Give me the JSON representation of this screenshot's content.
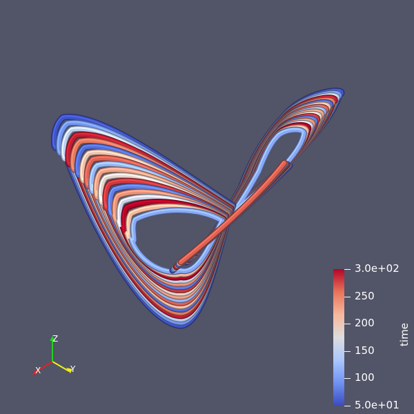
{
  "view": {
    "background": "#525467"
  },
  "color_legend": {
    "title": "time",
    "range": [
      50,
      300
    ],
    "ticks": [
      {
        "value": 300,
        "label": "3.0e+02"
      },
      {
        "value": 250,
        "label": "250"
      },
      {
        "value": 200,
        "label": "200"
      },
      {
        "value": 150,
        "label": "150"
      },
      {
        "value": 100,
        "label": "100"
      },
      {
        "value": 50,
        "label": "5.0e+01"
      }
    ],
    "colormap": [
      "#3b4cc0",
      "#6f92f3",
      "#aac7fd",
      "#dddddd",
      "#f7b89c",
      "#e7745b",
      "#b40426"
    ]
  },
  "orientation_axes": {
    "x": {
      "label": "X",
      "color": "#e22420"
    },
    "y": {
      "label": "Y",
      "color": "#f2f214"
    },
    "z": {
      "label": "Z",
      "color": "#22d122"
    }
  },
  "trajectory": {
    "loops": [
      {
        "time": 55
      },
      {
        "time": 95
      },
      {
        "time": 150
      },
      {
        "time": 290
      },
      {
        "time": 255
      },
      {
        "time": 70
      },
      {
        "time": 205
      },
      {
        "time": 265
      },
      {
        "time": 120
      },
      {
        "time": 230
      },
      {
        "time": 185
      },
      {
        "time": 280
      },
      {
        "time": 80
      },
      {
        "time": 240
      },
      {
        "time": 160
      },
      {
        "time": 300
      },
      {
        "time": 215
      },
      {
        "time": 110
      }
    ]
  }
}
